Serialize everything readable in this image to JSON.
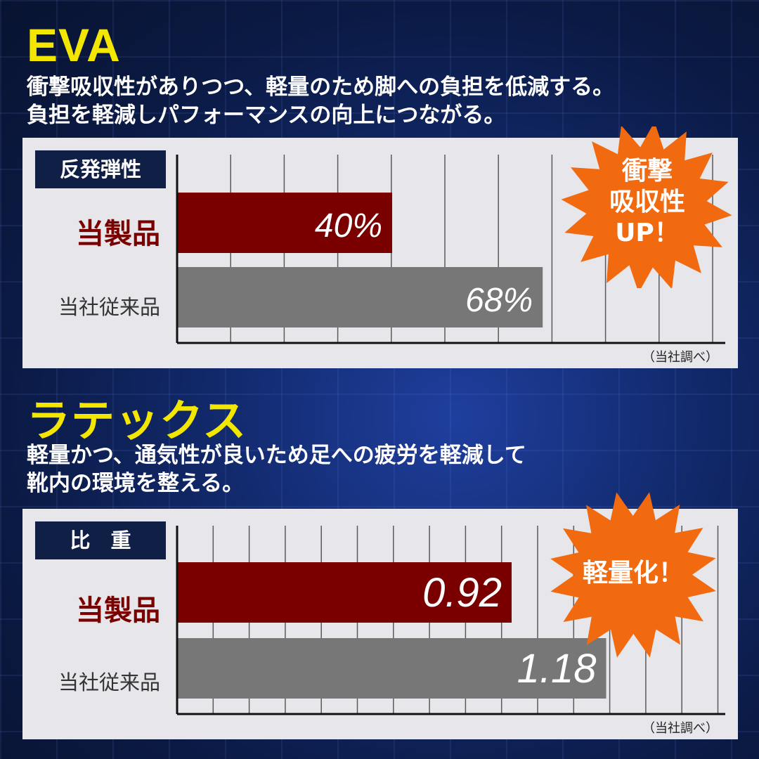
{
  "sections": [
    {
      "heading": "EVA",
      "desc_lines": [
        "衝撃吸収性がありつつ、軽量のため脚への負担を低減する。",
        "負担を軽減しパフォーマンスの向上につながる。"
      ],
      "badge": [
        "衝撃",
        "吸収性",
        "UP！"
      ]
    },
    {
      "heading": "ラテックス",
      "desc_lines": [
        "軽量かつ、通気性が良いため足への疲労を軽減して",
        "靴内の環境を整える。"
      ],
      "badge": [
        "軽量化！"
      ]
    }
  ],
  "colors": {
    "heading": "#f3e600",
    "product_bar": "#7a0000",
    "old_bar": "#777777",
    "burst": "#f26a10",
    "panel": "#e6e6eb",
    "metric_box": "#0f1f45"
  },
  "chart_data": [
    {
      "type": "bar",
      "orientation": "horizontal",
      "metric": "反発弾性",
      "categories": [
        "当製品",
        "当社従来品"
      ],
      "values": [
        40,
        68
      ],
      "value_labels": [
        "40%",
        "68%"
      ],
      "xlim": [
        0,
        100
      ],
      "grid": true,
      "note": "（当社調べ）"
    },
    {
      "type": "bar",
      "orientation": "horizontal",
      "metric": "比　重",
      "categories": [
        "当製品",
        "当社従来品"
      ],
      "values": [
        0.92,
        1.18
      ],
      "value_labels": [
        "0.92",
        "1.18"
      ],
      "xlim": [
        0,
        1.5
      ],
      "grid": true,
      "note": "（当社調べ）"
    }
  ]
}
